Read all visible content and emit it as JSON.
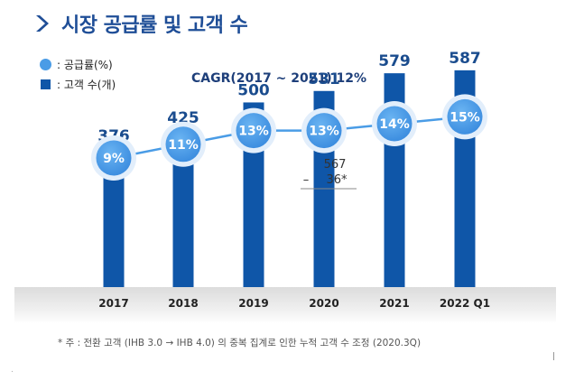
{
  "header": {
    "title": "시장 공급률 및 고객 수"
  },
  "legend": [
    {
      "label": ": 공급률(%)",
      "icon": "circle-icon",
      "color": "#4a9ce6"
    },
    {
      "label": ": 고객 수(개)",
      "icon": "square-icon",
      "color": "#0f56a8"
    }
  ],
  "annotation": {
    "cagr": "CAGR(2017 ~ 2021) 12%"
  },
  "footnote": "* 주 : 전환 고객 (IHB 3.0 → IHB 4.0) 의 중복 집계로 인한 누적 고객 수 조정 (2020.3Q)",
  "chart_data": {
    "type": "bar",
    "title": "시장 공급률 및 고객 수",
    "categories": [
      "2017",
      "2018",
      "2019",
      "2020",
      "2021",
      "2022 Q1"
    ],
    "series": [
      {
        "name": "고객 수(개)",
        "type": "bar",
        "values": [
          376,
          425,
          500,
          531,
          579,
          587
        ],
        "color": "#0f56a8"
      },
      {
        "name": "공급률(%)",
        "type": "line",
        "values": [
          9,
          11,
          13,
          13,
          14,
          15
        ],
        "labels": [
          "9%",
          "11%",
          "13%",
          "13%",
          "14%",
          "15%"
        ],
        "color": "#4a9ce6"
      }
    ],
    "bar_labels": [
      "376",
      "425",
      "500",
      "531",
      "579",
      "587"
    ],
    "adjustment": {
      "category": "2020",
      "before": "567",
      "minus": "–",
      "adjust": "36*"
    },
    "ylim": [
      0,
      660
    ],
    "grid": false,
    "legend_position": "top-left"
  }
}
